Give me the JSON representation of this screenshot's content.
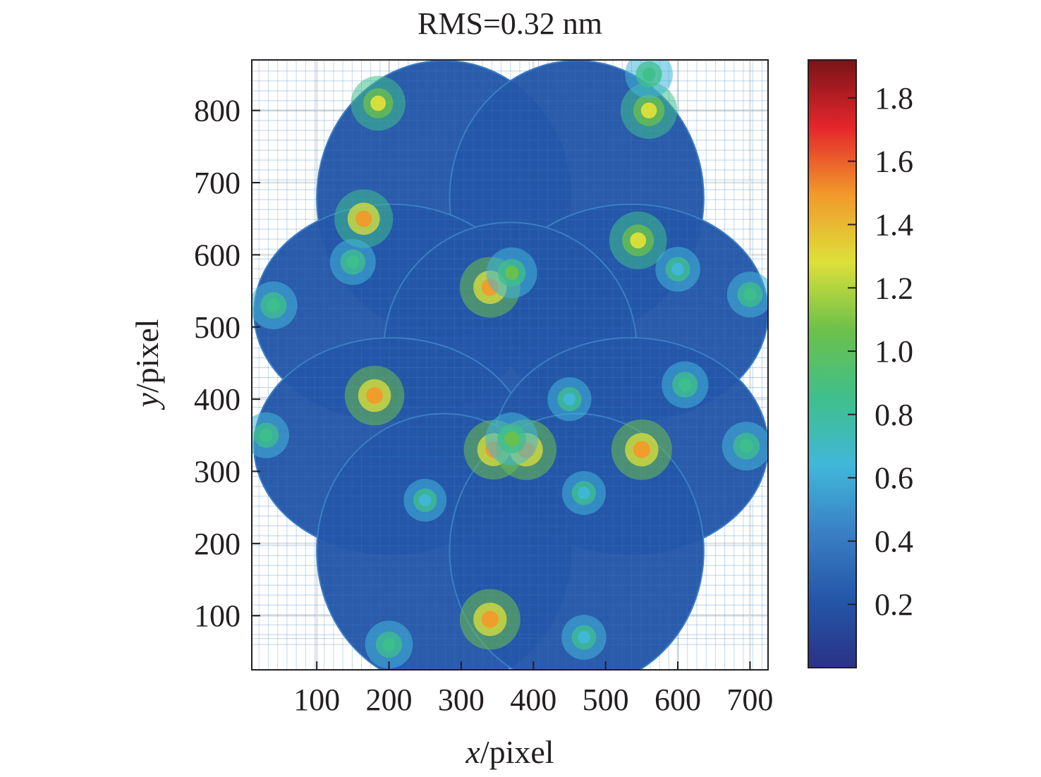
{
  "chart_data": {
    "type": "heatmap",
    "title": "RMS=0.32 nm",
    "xlabel": {
      "var": "x",
      "unit": "/pixel"
    },
    "ylabel": {
      "var": "y",
      "unit": "/pixel"
    },
    "xlim": [
      10,
      725
    ],
    "ylim": [
      25,
      870
    ],
    "xticks": [
      100,
      200,
      300,
      400,
      500,
      600,
      700
    ],
    "yticks": [
      100,
      200,
      300,
      400,
      500,
      600,
      700,
      800
    ],
    "colorbar": {
      "min": 0.0,
      "max": 1.92,
      "ticks": [
        0.2,
        0.4,
        0.6,
        0.8,
        1.0,
        1.2,
        1.4,
        1.6,
        1.8
      ],
      "tick_labels": [
        "0.2",
        "0.4",
        "0.6",
        "0.8",
        "1.0",
        "1.2",
        "1.4",
        "1.6",
        "1.8"
      ],
      "colormap": [
        "#2b3286",
        "#2456a8",
        "#3a7fc4",
        "#41b7d9",
        "#3fbf8c",
        "#6cc04a",
        "#dde03a",
        "#f19a2b",
        "#e4262b",
        "#7a1417"
      ]
    },
    "grid": true,
    "typical_value": 0.3,
    "subapertures": [
      {
        "cx": 276,
        "cy": 679,
        "r": 190,
        "wx": 176,
        "wy": 190
      },
      {
        "cx": 460,
        "cy": 679,
        "r": 190,
        "wx": 176,
        "wy": 190
      },
      {
        "cx": 203,
        "cy": 520,
        "r": 190,
        "wx": 190,
        "wy": 150
      },
      {
        "cx": 535,
        "cy": 520,
        "r": 190,
        "wx": 190,
        "wy": 150
      },
      {
        "cx": 368,
        "cy": 470,
        "r": 175,
        "wx": 175,
        "wy": 175
      },
      {
        "cx": 203,
        "cy": 335,
        "r": 190,
        "wx": 190,
        "wy": 150
      },
      {
        "cx": 535,
        "cy": 335,
        "r": 190,
        "wx": 190,
        "wy": 150
      },
      {
        "cx": 276,
        "cy": 190,
        "r": 190,
        "wx": 176,
        "wy": 190
      },
      {
        "cx": 460,
        "cy": 190,
        "r": 190,
        "wx": 176,
        "wy": 190
      }
    ],
    "hot_spots": [
      {
        "x": 340,
        "y": 555,
        "v": 1.5
      },
      {
        "x": 370,
        "y": 575,
        "v": 1.0
      },
      {
        "x": 345,
        "y": 330,
        "v": 1.45
      },
      {
        "x": 390,
        "y": 330,
        "v": 1.5
      },
      {
        "x": 370,
        "y": 345,
        "v": 1.1
      },
      {
        "x": 340,
        "y": 95,
        "v": 1.5
      },
      {
        "x": 550,
        "y": 330,
        "v": 1.5
      },
      {
        "x": 545,
        "y": 620,
        "v": 1.35
      },
      {
        "x": 165,
        "y": 650,
        "v": 1.4
      },
      {
        "x": 180,
        "y": 405,
        "v": 1.45
      },
      {
        "x": 560,
        "y": 800,
        "v": 1.3
      },
      {
        "x": 185,
        "y": 810,
        "v": 1.2
      },
      {
        "x": 40,
        "y": 530,
        "v": 0.85
      },
      {
        "x": 700,
        "y": 545,
        "v": 0.75
      },
      {
        "x": 30,
        "y": 350,
        "v": 0.75
      },
      {
        "x": 695,
        "y": 335,
        "v": 0.9
      },
      {
        "x": 150,
        "y": 590,
        "v": 0.75
      },
      {
        "x": 600,
        "y": 580,
        "v": 0.7
      },
      {
        "x": 610,
        "y": 420,
        "v": 0.8
      },
      {
        "x": 450,
        "y": 400,
        "v": 0.65
      },
      {
        "x": 250,
        "y": 260,
        "v": 0.6
      },
      {
        "x": 470,
        "y": 270,
        "v": 0.65
      },
      {
        "x": 560,
        "y": 850,
        "v": 0.85
      },
      {
        "x": 200,
        "y": 60,
        "v": 0.85
      },
      {
        "x": 470,
        "y": 70,
        "v": 0.7
      }
    ]
  }
}
